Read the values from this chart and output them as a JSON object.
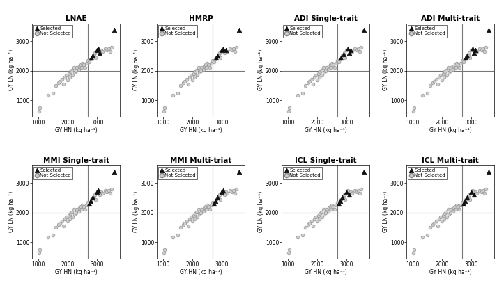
{
  "titles": [
    "LNAE",
    "HMRP",
    "ADI Single-trait",
    "ADI Multi-trait",
    "MMI Single-trait",
    "MMI Multi-triat",
    "ICL Single-trait",
    "ICL Multi-trait"
  ],
  "xlabel": "GY HN (kg ha⁻¹)",
  "ylabel": "GY LN (kg ha⁻¹)",
  "xlim": [
    800,
    3800
  ],
  "ylim": [
    450,
    3600
  ],
  "xticks": [
    1000,
    2000,
    3000
  ],
  "yticks": [
    1000,
    2000,
    3000
  ],
  "hline": 2000,
  "vline": 2700,
  "all_hn": [
    1020,
    1060,
    1350,
    1500,
    1600,
    1700,
    1750,
    1820,
    1870,
    1900,
    1950,
    2000,
    2050,
    2080,
    2100,
    2150,
    2180,
    2220,
    2250,
    2280,
    2320,
    2380,
    2420,
    2450,
    2480,
    2500,
    2550,
    2600,
    2650,
    2700,
    2750,
    2780,
    2820,
    2870,
    2900,
    2930,
    2950,
    3000,
    3050,
    3100,
    3150,
    3200,
    3300,
    3350,
    3400,
    3450,
    3500,
    3600
  ],
  "all_ln": [
    640,
    750,
    1180,
    1250,
    1500,
    1600,
    1650,
    1720,
    1550,
    1780,
    1860,
    1700,
    1900,
    1780,
    1980,
    2020,
    1850,
    2100,
    1950,
    2000,
    2100,
    2050,
    2150,
    2200,
    2100,
    2250,
    2200,
    2100,
    2250,
    2350,
    2300,
    2400,
    2450,
    2500,
    2550,
    2600,
    2450,
    2700,
    2750,
    2600,
    2700,
    2650,
    2750,
    2700,
    2750,
    2650,
    2800,
    3380
  ],
  "selected": {
    "LNAE": [
      32,
      33,
      37,
      38,
      39,
      47
    ],
    "HMRP": [
      32,
      33,
      37,
      38,
      40,
      47
    ],
    "ADI Single-trait": [
      32,
      34,
      38,
      39,
      40,
      47
    ],
    "ADI Multi-trait": [
      32,
      33,
      38,
      39,
      40,
      47
    ],
    "MMI Single-trait": [
      30,
      31,
      33,
      37,
      38,
      47
    ],
    "MMI Multi-triat": [
      30,
      31,
      33,
      37,
      38,
      47
    ],
    "ICL Single-trait": [
      30,
      31,
      33,
      37,
      39,
      47
    ],
    "ICL Multi-trait": [
      30,
      31,
      33,
      37,
      39,
      47
    ]
  },
  "marker_selected": "^",
  "marker_not_selected": "o",
  "color_selected": "#111111",
  "color_not_selected": "#cccccc",
  "edgecolor_not_selected": "#888888",
  "background_color": "#ffffff",
  "refline_color": "#777777",
  "refline_lw": 0.8,
  "scatter_size_circle": 12,
  "scatter_size_tri": 22,
  "legend_fontsize": 5.0,
  "tick_fontsize": 5.5,
  "title_fontsize": 7.5,
  "label_fontsize": 5.5
}
